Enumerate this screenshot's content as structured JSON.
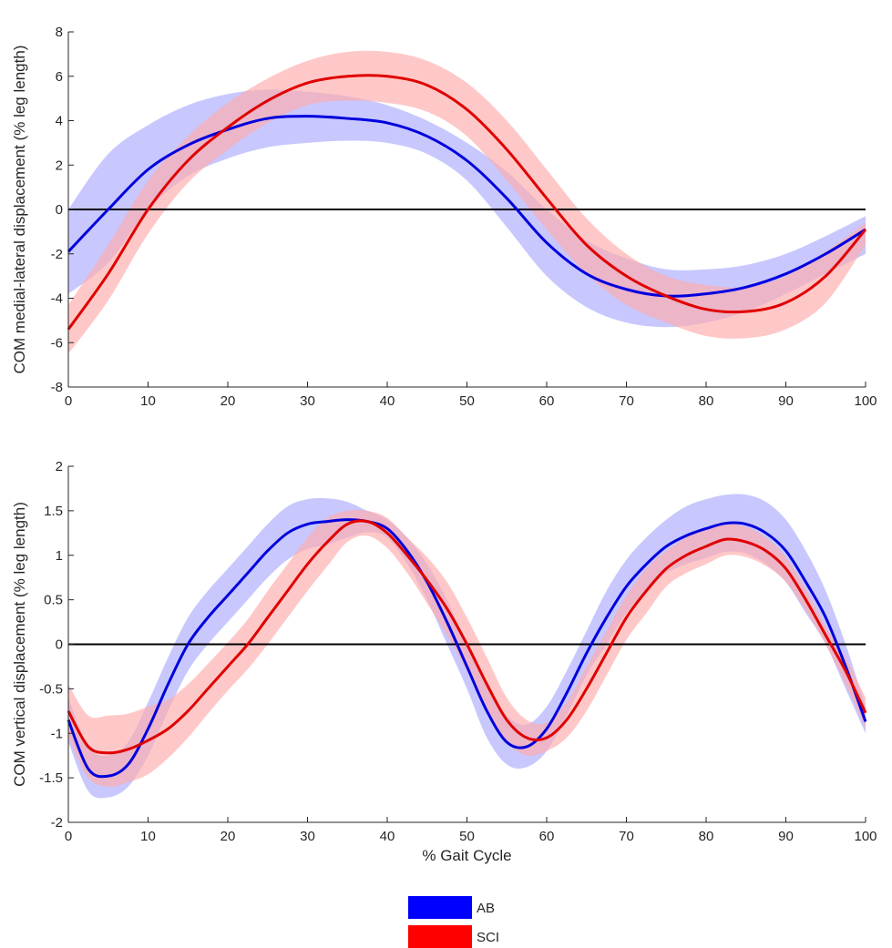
{
  "colors": {
    "AB_line": "#0000dd",
    "AB_band": "#aaaaff",
    "SCI_line": "#e00000",
    "SCI_band": "#ffaaaa",
    "zero_line": "#000000",
    "axis": "#262626"
  },
  "legend": {
    "placement": "bottom-center",
    "items": [
      {
        "label": "AB",
        "color": "#0000ff"
      },
      {
        "label": "SCI",
        "color": "#ff0000"
      }
    ]
  },
  "chart_data": [
    {
      "type": "line",
      "variant": "mean with shaded band",
      "ylabel": "COM medial-lateral displacement (% leg length)",
      "xlabel": "",
      "xlim": [
        0,
        100
      ],
      "ylim": [
        -8,
        8
      ],
      "xticks": [
        0,
        10,
        20,
        30,
        40,
        50,
        60,
        70,
        80,
        90,
        100
      ],
      "yticks": [
        -8,
        -6,
        -4,
        -2,
        0,
        2,
        4,
        6,
        8
      ],
      "x": [
        0,
        5,
        10,
        15,
        20,
        25,
        30,
        35,
        40,
        45,
        50,
        55,
        60,
        65,
        70,
        75,
        80,
        85,
        90,
        95,
        100
      ],
      "grid": false,
      "zero_line": true,
      "series": [
        {
          "name": "AB",
          "mean": [
            -1.9,
            0.0,
            1.8,
            2.9,
            3.6,
            4.1,
            4.2,
            4.1,
            3.9,
            3.3,
            2.2,
            0.5,
            -1.5,
            -2.9,
            -3.6,
            -3.9,
            -3.8,
            -3.5,
            -2.9,
            -2.0,
            -0.9
          ],
          "upper": [
            0.0,
            2.5,
            3.8,
            4.7,
            5.2,
            5.4,
            5.3,
            5.1,
            4.7,
            4.0,
            3.0,
            1.7,
            0.0,
            -1.4,
            -2.2,
            -2.7,
            -2.7,
            -2.5,
            -2.0,
            -1.2,
            -0.3
          ],
          "lower": [
            -3.8,
            -2.4,
            0.0,
            1.5,
            2.3,
            2.8,
            3.0,
            3.1,
            3.0,
            2.5,
            1.3,
            -0.8,
            -3.0,
            -4.4,
            -5.1,
            -5.3,
            -5.1,
            -4.6,
            -3.8,
            -2.9,
            -2.0
          ]
        },
        {
          "name": "SCI",
          "mean": [
            -5.4,
            -2.9,
            0.0,
            2.2,
            3.7,
            4.9,
            5.7,
            6.0,
            6.0,
            5.6,
            4.5,
            2.7,
            0.5,
            -1.6,
            -3.0,
            -3.9,
            -4.5,
            -4.6,
            -4.2,
            -3.0,
            -0.9
          ],
          "upper": [
            -4.3,
            -1.6,
            1.3,
            3.3,
            4.8,
            5.9,
            6.7,
            7.1,
            7.1,
            6.7,
            5.7,
            4.0,
            1.8,
            -0.4,
            -2.0,
            -3.0,
            -3.4,
            -3.5,
            -3.0,
            -1.9,
            -0.6
          ],
          "lower": [
            -6.5,
            -4.1,
            -1.1,
            1.2,
            2.7,
            3.9,
            4.7,
            4.9,
            4.8,
            4.4,
            3.3,
            1.3,
            -0.9,
            -2.9,
            -4.3,
            -5.1,
            -5.7,
            -5.8,
            -5.4,
            -4.2,
            -1.6
          ]
        }
      ]
    },
    {
      "type": "line",
      "variant": "mean with shaded band",
      "ylabel": "COM vertical displacement (% leg length)",
      "xlabel": "% Gait Cycle",
      "xlim": [
        0,
        100
      ],
      "ylim": [
        -2,
        2
      ],
      "xticks": [
        0,
        10,
        20,
        30,
        40,
        50,
        60,
        70,
        80,
        90,
        100
      ],
      "yticks": [
        -2,
        -1.5,
        -1,
        -0.5,
        0,
        0.5,
        1,
        1.5,
        2
      ],
      "x": [
        0,
        2.5,
        5,
        7.5,
        10,
        12.5,
        15,
        17.5,
        20,
        22.5,
        25,
        27.5,
        30,
        32.5,
        35,
        37.5,
        40,
        42.5,
        45,
        47.5,
        50,
        52.5,
        55,
        57.5,
        60,
        62.5,
        65,
        67.5,
        70,
        72.5,
        75,
        77.5,
        80,
        82.5,
        85,
        87.5,
        90,
        92.5,
        95,
        97.5,
        100
      ],
      "grid": false,
      "zero_line": true,
      "series": [
        {
          "name": "AB",
          "mean": [
            -0.85,
            -1.4,
            -1.48,
            -1.35,
            -0.95,
            -0.45,
            0.0,
            0.3,
            0.55,
            0.8,
            1.05,
            1.25,
            1.35,
            1.38,
            1.4,
            1.38,
            1.3,
            1.05,
            0.7,
            0.25,
            -0.25,
            -0.75,
            -1.1,
            -1.15,
            -0.95,
            -0.55,
            -0.1,
            0.3,
            0.65,
            0.9,
            1.1,
            1.22,
            1.3,
            1.36,
            1.35,
            1.25,
            1.05,
            0.7,
            0.3,
            -0.25,
            -0.87
          ],
          "upper": [
            -0.6,
            -1.15,
            -1.25,
            -1.1,
            -0.65,
            -0.15,
            0.3,
            0.6,
            0.85,
            1.1,
            1.35,
            1.55,
            1.63,
            1.64,
            1.6,
            1.5,
            1.4,
            1.2,
            0.9,
            0.5,
            0.0,
            -0.45,
            -0.8,
            -0.9,
            -0.7,
            -0.3,
            0.15,
            0.6,
            0.95,
            1.2,
            1.4,
            1.55,
            1.63,
            1.68,
            1.68,
            1.6,
            1.4,
            1.05,
            0.6,
            0.0,
            -0.7
          ],
          "lower": [
            -1.1,
            -1.65,
            -1.72,
            -1.6,
            -1.25,
            -0.75,
            -0.3,
            0.0,
            0.25,
            0.5,
            0.75,
            0.95,
            1.07,
            1.12,
            1.2,
            1.26,
            1.2,
            0.9,
            0.5,
            0.0,
            -0.5,
            -1.05,
            -1.35,
            -1.38,
            -1.2,
            -0.8,
            -0.35,
            0.0,
            0.35,
            0.6,
            0.8,
            0.9,
            0.97,
            1.04,
            1.02,
            0.9,
            0.7,
            0.35,
            0.0,
            -0.5,
            -1.0
          ]
        },
        {
          "name": "SCI",
          "mean": [
            -0.75,
            -1.15,
            -1.22,
            -1.18,
            -1.08,
            -0.95,
            -0.75,
            -0.5,
            -0.25,
            0.0,
            0.3,
            0.6,
            0.9,
            1.15,
            1.35,
            1.38,
            1.25,
            1.0,
            0.72,
            0.4,
            0.0,
            -0.45,
            -0.85,
            -1.05,
            -1.05,
            -0.85,
            -0.5,
            -0.1,
            0.3,
            0.6,
            0.85,
            1.0,
            1.1,
            1.18,
            1.15,
            1.05,
            0.85,
            0.5,
            0.1,
            -0.3,
            -0.77
          ],
          "upper": [
            -0.45,
            -0.8,
            -0.8,
            -0.78,
            -0.7,
            -0.62,
            -0.45,
            -0.22,
            0.02,
            0.28,
            0.6,
            0.9,
            1.2,
            1.42,
            1.5,
            1.5,
            1.42,
            1.2,
            0.98,
            0.7,
            0.3,
            -0.15,
            -0.6,
            -0.85,
            -0.88,
            -0.65,
            -0.25,
            0.15,
            0.55,
            0.85,
            1.05,
            1.2,
            1.3,
            1.35,
            1.32,
            1.2,
            0.98,
            0.62,
            0.2,
            -0.15,
            -0.6
          ],
          "lower": [
            -1.05,
            -1.5,
            -1.6,
            -1.55,
            -1.46,
            -1.28,
            -1.05,
            -0.78,
            -0.52,
            -0.28,
            0.0,
            0.3,
            0.6,
            0.88,
            1.15,
            1.22,
            1.08,
            0.8,
            0.46,
            0.1,
            -0.3,
            -0.75,
            -1.1,
            -1.25,
            -1.2,
            -1.05,
            -0.75,
            -0.35,
            0.05,
            0.35,
            0.65,
            0.8,
            0.9,
            1.0,
            0.98,
            0.88,
            0.7,
            0.38,
            0.0,
            -0.45,
            -0.95
          ]
        }
      ]
    }
  ]
}
